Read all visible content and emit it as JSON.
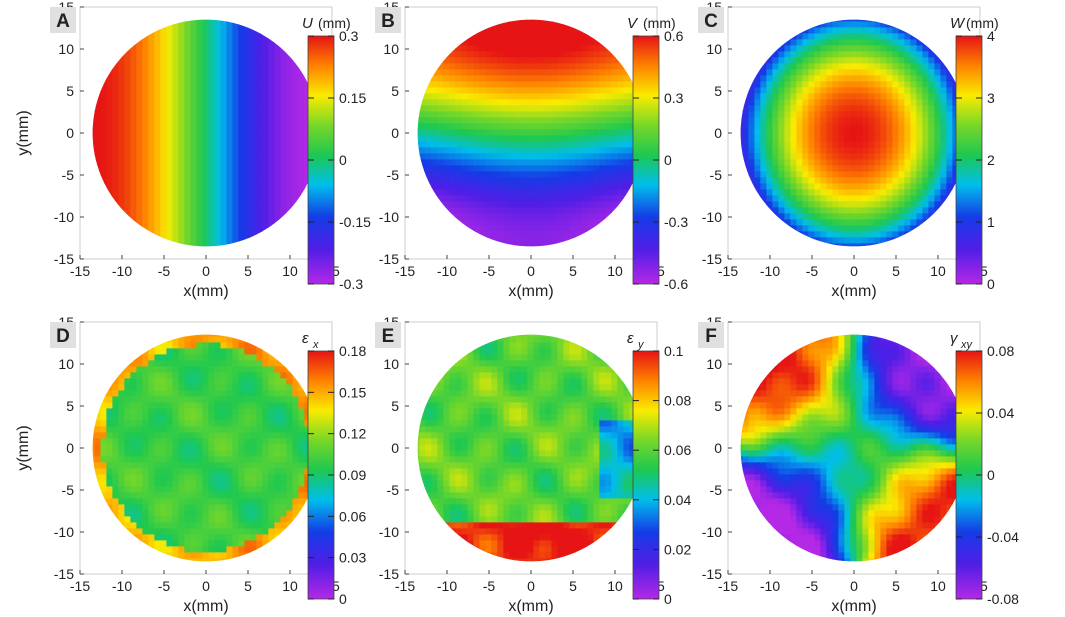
{
  "chart_data": [
    {
      "type": "heatmap",
      "panel_label": "A",
      "xlabel": "x(mm)",
      "ylabel": "y(mm)",
      "xlim": [
        -15,
        15
      ],
      "ylim": [
        -15,
        15
      ],
      "xticks": [
        "-15",
        "-10",
        "-5",
        "0",
        "5",
        "10",
        "15"
      ],
      "yticks": [
        "15",
        "10",
        "5",
        "0",
        "-5",
        "-10",
        "-15"
      ],
      "colorbar": {
        "title": "U",
        "unit": "(mm)",
        "ticks": [
          "0.3",
          "0.15",
          "0",
          "-0.15",
          "-0.3"
        ],
        "range": [
          -0.3,
          0.3
        ]
      },
      "field": {
        "pattern": "ux",
        "scale": 0.3
      }
    },
    {
      "type": "heatmap",
      "panel_label": "B",
      "xlabel": "x(mm)",
      "ylabel": "",
      "xlim": [
        -15,
        15
      ],
      "ylim": [
        -15,
        15
      ],
      "xticks": [
        "-15",
        "-10",
        "-5",
        "0",
        "5",
        "10",
        "15"
      ],
      "yticks": [
        "15",
        "10",
        "5",
        "0",
        "-5",
        "-10",
        "-15"
      ],
      "colorbar": {
        "title": "V",
        "unit": "(mm)",
        "ticks": [
          "0.6",
          "0.3",
          "0",
          "-0.3",
          "-0.6"
        ],
        "range": [
          -0.6,
          0.6
        ]
      },
      "field": {
        "pattern": "vy",
        "scale": 0.6
      }
    },
    {
      "type": "heatmap",
      "panel_label": "C",
      "xlabel": "x(mm)",
      "ylabel": "",
      "xlim": [
        -15,
        15
      ],
      "ylim": [
        -15,
        15
      ],
      "xticks": [
        "-15",
        "-10",
        "-5",
        "0",
        "5",
        "10",
        "15"
      ],
      "yticks": [
        "15",
        "10",
        "5",
        "0",
        "-5",
        "-10",
        "-15"
      ],
      "colorbar": {
        "title": "W",
        "unit": "(mm)",
        "ticks": [
          "4",
          "3",
          "2",
          "1",
          "0"
        ],
        "range": [
          0,
          4
        ]
      },
      "field": {
        "pattern": "dome",
        "peak": 4.0
      }
    },
    {
      "type": "heatmap",
      "panel_label": "D",
      "xlabel": "x(mm)",
      "ylabel": "y(mm)",
      "xlim": [
        -15,
        15
      ],
      "ylim": [
        -15,
        15
      ],
      "xticks": [
        "-15",
        "-10",
        "-5",
        "0",
        "5",
        "10",
        "15"
      ],
      "yticks": [
        "15",
        "10",
        "5",
        "0",
        "-5",
        "-10",
        "-15"
      ],
      "colorbar": {
        "title": "ε",
        "subscript": "x",
        "unit": "",
        "ticks": [
          "0.18",
          "0.15",
          "0.12",
          "0.09",
          "0.06",
          "0.03",
          "0"
        ],
        "range": [
          0,
          0.18
        ]
      },
      "field": {
        "pattern": "ex",
        "base": 0.1
      }
    },
    {
      "type": "heatmap",
      "panel_label": "E",
      "xlabel": "x(mm)",
      "ylabel": "",
      "xlim": [
        -15,
        15
      ],
      "ylim": [
        -15,
        15
      ],
      "xticks": [
        "-15",
        "-10",
        "-5",
        "0",
        "5",
        "10",
        "15"
      ],
      "yticks": [
        "15",
        "10",
        "5",
        "0",
        "-5",
        "-10",
        "-15"
      ],
      "colorbar": {
        "title": "ε",
        "subscript": "y",
        "unit": "",
        "ticks": [
          "0.1",
          "0.08",
          "0.06",
          "0.04",
          "0.02",
          "0"
        ],
        "range": [
          0,
          0.1
        ]
      },
      "field": {
        "pattern": "ey",
        "base": 0.06
      }
    },
    {
      "type": "heatmap",
      "panel_label": "F",
      "xlabel": "x(mm)",
      "ylabel": "",
      "xlim": [
        -15,
        15
      ],
      "ylim": [
        -15,
        15
      ],
      "xticks": [
        "-15",
        "-10",
        "-5",
        "0",
        "5",
        "10",
        "15"
      ],
      "yticks": [
        "15",
        "10",
        "5",
        "0",
        "-5",
        "-10",
        "-15"
      ],
      "colorbar": {
        "title": "γ",
        "subscript": "xy",
        "unit": "",
        "ticks": [
          "0.08",
          "0.04",
          "0",
          "-0.04",
          "-0.08"
        ],
        "range": [
          -0.08,
          0.08
        ]
      },
      "field": {
        "pattern": "gxy",
        "scale": 0.08
      }
    }
  ]
}
